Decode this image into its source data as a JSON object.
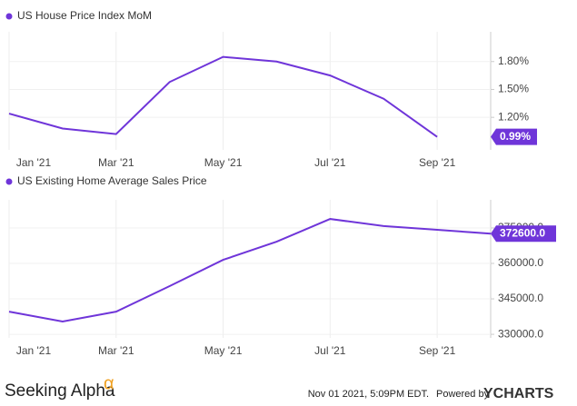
{
  "chart_data": [
    {
      "type": "line",
      "categories": [
        "Jan '21",
        null,
        "Mar '21",
        null,
        "May '21",
        null,
        "Jul '21",
        null,
        "Sep '21",
        null
      ],
      "series": [
        {
          "name": "US House Price Index MoM",
          "color": "#6f35d9",
          "values": [
            1.24,
            1.08,
            1.02,
            1.58,
            1.85,
            1.8,
            1.65,
            1.4,
            0.99,
            null
          ],
          "value_labels": [
            null,
            null,
            null,
            null,
            null,
            null,
            null,
            null,
            "0.99%",
            null
          ]
        }
      ],
      "ylim": [
        0.85,
        2.12
      ],
      "yticks": [
        {
          "value": 1.2,
          "label": "1.20%"
        },
        {
          "value": 1.5,
          "label": "1.50%"
        },
        {
          "value": 1.8,
          "label": "1.80%"
        }
      ],
      "grid": true
    },
    {
      "type": "line",
      "categories": [
        "Jan '21",
        null,
        "Mar '21",
        null,
        "May '21",
        null,
        "Jul '21",
        null,
        "Sep '21",
        null
      ],
      "series": [
        {
          "name": "US Existing Home Average Sales Price",
          "color": "#6f35d9",
          "values": [
            339600,
            335400,
            339600,
            350400,
            361500,
            369200,
            378800,
            375800,
            374200,
            372600
          ],
          "value_labels": [
            null,
            null,
            null,
            null,
            null,
            null,
            null,
            null,
            null,
            "372600.0"
          ]
        }
      ],
      "ylim": [
        328500,
        386900
      ],
      "yticks": [
        {
          "value": 330000,
          "label": "330000.0"
        },
        {
          "value": 345000,
          "label": "345000.0"
        },
        {
          "value": 360000,
          "label": "360000.0"
        },
        {
          "value": 375000,
          "label": "375000.0"
        }
      ],
      "grid": true
    }
  ],
  "footer": {
    "brand": "Seeking Alpha",
    "brand_mark": "α",
    "timestamp": "Nov 01 2021, 5:09PM EDT.",
    "powered": "Powered by",
    "provider": "YCHARTS"
  }
}
